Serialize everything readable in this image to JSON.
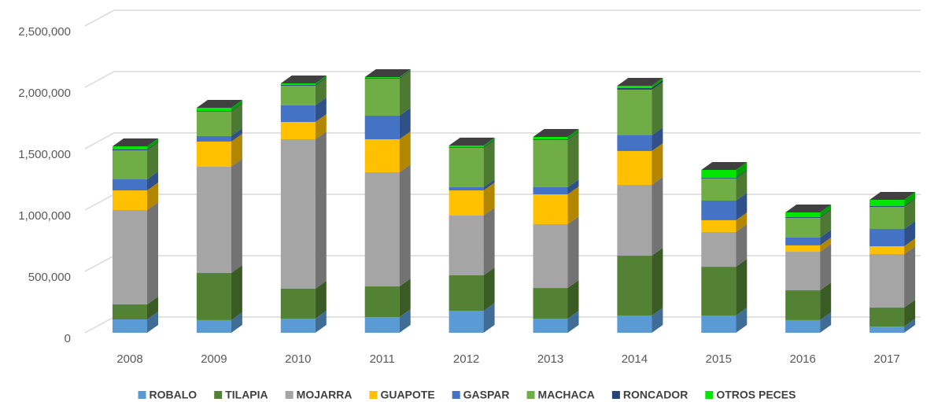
{
  "chart_data": {
    "type": "bar3d_stacked",
    "categories": [
      "2008",
      "2009",
      "2010",
      "2011",
      "2012",
      "2013",
      "2014",
      "2015",
      "2016",
      "2017"
    ],
    "series": [
      {
        "name": "ROBALO",
        "color": "#5b9bd5",
        "values": [
          109000,
          103000,
          115000,
          128000,
          179000,
          115000,
          141000,
          141000,
          103000,
          51000
        ]
      },
      {
        "name": "TILAPIA",
        "color": "#548235",
        "values": [
          122000,
          384000,
          244000,
          250000,
          289000,
          250000,
          487000,
          397000,
          243000,
          154000
        ]
      },
      {
        "name": "MOJARRA",
        "color": "#a5a5a5",
        "values": [
          769000,
          866000,
          1218000,
          930000,
          487000,
          520000,
          577000,
          283000,
          314000,
          436000
        ]
      },
      {
        "name": "GUAPOTE",
        "color": "#ffc000",
        "values": [
          160000,
          205000,
          141000,
          269000,
          205000,
          243000,
          276000,
          96000,
          52000,
          64000
        ]
      },
      {
        "name": "GASPAR",
        "color": "#4472c4",
        "values": [
          90000,
          45000,
          135000,
          192000,
          26000,
          58000,
          128000,
          160000,
          64000,
          141000
        ]
      },
      {
        "name": "MACHACA",
        "color": "#70ad47",
        "values": [
          237000,
          198000,
          160000,
          302000,
          320000,
          385000,
          372000,
          179000,
          160000,
          180000
        ]
      },
      {
        "name": "RONCADOR",
        "color": "#264478",
        "values": [
          7000,
          6000,
          6000,
          6000,
          6000,
          6000,
          13000,
          6000,
          6000,
          6000
        ]
      },
      {
        "name": "OTROS PECES",
        "color": "#00e600",
        "values": [
          25000,
          26000,
          13000,
          6000,
          14000,
          19000,
          19000,
          65000,
          39000,
          51000
        ]
      }
    ],
    "ylim": [
      0,
      2500000
    ],
    "yticks": [
      0,
      {
        "value": 500000,
        "label": "500,000"
      },
      {
        "value": 1000000,
        "label": "1,000,000"
      },
      {
        "value": 1500000,
        "label": "1,500,000"
      },
      {
        "value": 2000000,
        "label": "2,000,000"
      },
      {
        "value": 2500000,
        "label": "2,500,000"
      }
    ],
    "grid": true,
    "legend": "bottom"
  }
}
